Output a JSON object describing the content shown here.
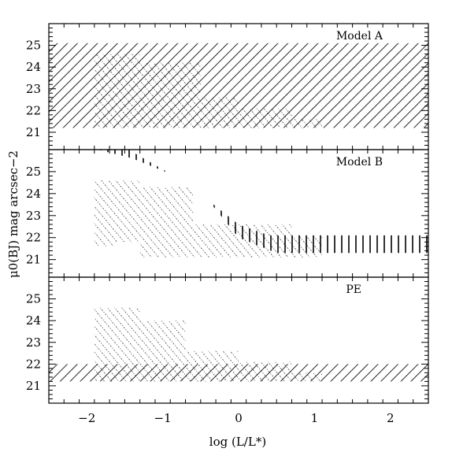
{
  "chart_data": {
    "type": "area",
    "xlabel": "log (L/L*)",
    "ylabel": "μ0(BJ) mag arcsec−2",
    "xlim": [
      -2.5,
      2.5
    ],
    "x_ticks": [
      "−2",
      "−1",
      "0",
      "1",
      "2"
    ],
    "x_tick_values": [
      -2,
      -1,
      0,
      1,
      2
    ],
    "ylim": [
      26.0,
      20.2
    ],
    "y_ticks": [
      "21",
      "22",
      "23",
      "24",
      "25"
    ],
    "y_tick_values": [
      21,
      22,
      23,
      24,
      25
    ],
    "panels": [
      {
        "label": "Model A",
        "regions": [
          {
            "hatch": "back-diagonal-solid",
            "x": [
              -2.5,
              2.5
            ],
            "y_bright": [
              21.2,
              21.2
            ],
            "y_faint": [
              25.1,
              25.1
            ]
          },
          {
            "hatch": "diagonal-dotted",
            "polygon": [
              [
                -1.9,
                21.2
              ],
              [
                1.1,
                21.2
              ],
              [
                1.1,
                21.6
              ],
              [
                0.7,
                21.6
              ],
              [
                0.7,
                22.1
              ],
              [
                0.0,
                22.1
              ],
              [
                0.0,
                22.6
              ],
              [
                -0.5,
                22.6
              ],
              [
                -0.5,
                24.2
              ],
              [
                -1.3,
                24.2
              ],
              [
                -1.3,
                24.6
              ],
              [
                -1.9,
                24.6
              ]
            ]
          }
        ]
      },
      {
        "label": "Model B",
        "regions": [
          {
            "hatch": "diagonal-dotted",
            "polygon": [
              [
                -1.9,
                21.6
              ],
              [
                -1.6,
                21.6
              ],
              [
                -1.6,
                21.8
              ],
              [
                -1.3,
                21.8
              ],
              [
                -1.3,
                21.1
              ],
              [
                1.1,
                21.1
              ],
              [
                1.1,
                22.1
              ],
              [
                0.7,
                22.1
              ],
              [
                0.7,
                22.6
              ],
              [
                -0.6,
                22.6
              ],
              [
                -0.6,
                24.3
              ],
              [
                -1.3,
                24.3
              ],
              [
                -1.3,
                24.6
              ],
              [
                -1.9,
                24.6
              ]
            ]
          },
          {
            "hatch": "vertical-solid",
            "polygon": [
              [
                -1.85,
                26.0
              ],
              [
                -1.4,
                25.6
              ],
              [
                -0.9,
                24.9
              ],
              [
                -0.4,
                23.7
              ],
              [
                0.0,
                22.0
              ],
              [
                0.5,
                21.3
              ],
              [
                2.5,
                21.3
              ],
              [
                2.5,
                22.1
              ],
              [
                0.4,
                22.1
              ],
              [
                0.0,
                22.6
              ],
              [
                -0.4,
                23.7
              ],
              [
                -0.9,
                24.9
              ],
              [
                -1.4,
                25.9
              ],
              [
                -1.45,
                26.0
              ]
            ]
          }
        ]
      },
      {
        "label": "PE",
        "regions": [
          {
            "hatch": "back-diagonal-solid",
            "x": [
              -2.5,
              2.5
            ],
            "y_bright": [
              21.2,
              21.2
            ],
            "y_faint": [
              22.0,
              22.0
            ]
          },
          {
            "hatch": "diagonal-dotted",
            "polygon": [
              [
                -1.9,
                21.2
              ],
              [
                1.1,
                21.2
              ],
              [
                1.1,
                21.6
              ],
              [
                0.7,
                21.6
              ],
              [
                0.7,
                22.1
              ],
              [
                0.0,
                22.1
              ],
              [
                0.0,
                22.6
              ],
              [
                -0.7,
                22.6
              ],
              [
                -0.7,
                24.0
              ],
              [
                -1.3,
                24.0
              ],
              [
                -1.3,
                24.6
              ],
              [
                -1.9,
                24.6
              ]
            ]
          }
        ]
      }
    ]
  }
}
